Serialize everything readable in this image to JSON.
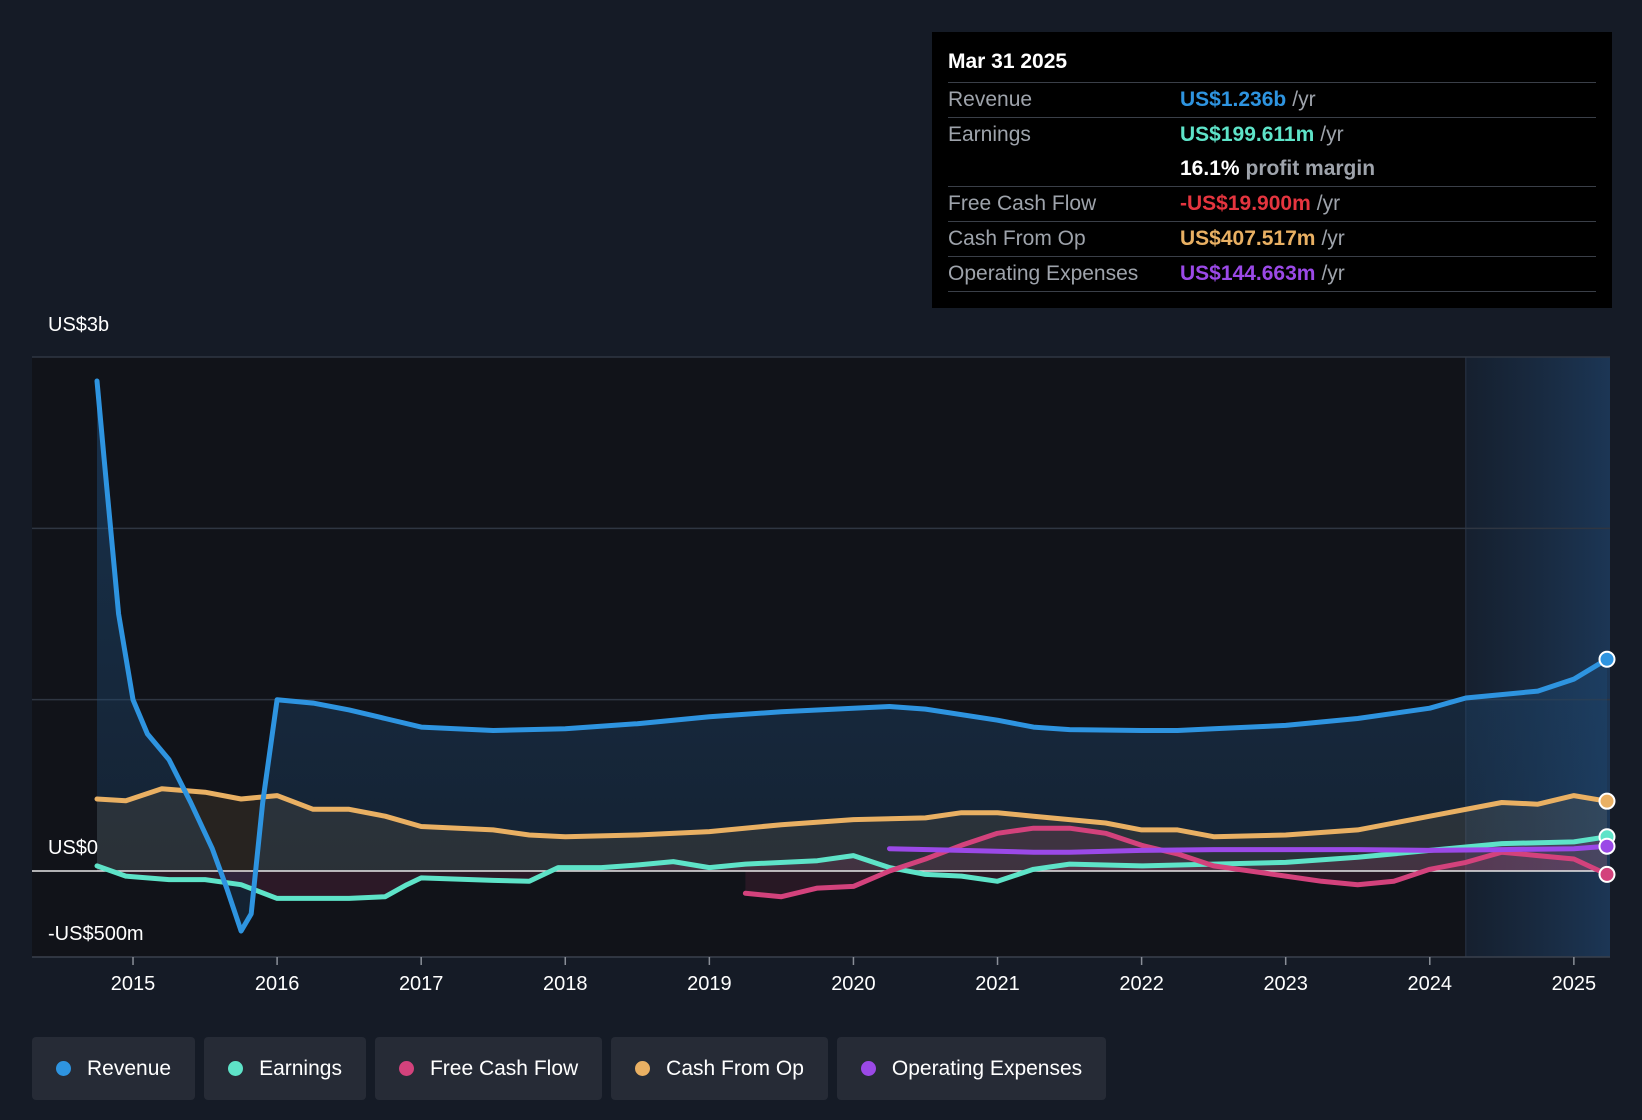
{
  "tooltip": {
    "date": "Mar 31 2025",
    "revenue": {
      "label": "Revenue",
      "value": "US$1.236b",
      "unit": "/yr"
    },
    "earnings": {
      "label": "Earnings",
      "value": "US$199.611m",
      "unit": "/yr"
    },
    "margin": {
      "value": "16.1%",
      "text": "profit margin"
    },
    "fcf": {
      "label": "Free Cash Flow",
      "value": "-US$19.900m",
      "unit": "/yr"
    },
    "cfo": {
      "label": "Cash From Op",
      "value": "US$407.517m",
      "unit": "/yr"
    },
    "opex": {
      "label": "Operating Expenses",
      "value": "US$144.663m",
      "unit": "/yr"
    }
  },
  "colors": {
    "revenue": "#2e94e0",
    "earnings": "#5ee3c8",
    "fcf": "#d3427c",
    "cfo": "#e9b063",
    "opex": "#9b49e7"
  },
  "legend": [
    {
      "label": "Revenue",
      "key": "revenue"
    },
    {
      "label": "Earnings",
      "key": "earnings"
    },
    {
      "label": "Free Cash Flow",
      "key": "fcf"
    },
    {
      "label": "Cash From Op",
      "key": "cfo"
    },
    {
      "label": "Operating Expenses",
      "key": "opex"
    }
  ],
  "chart_data": {
    "type": "line",
    "y_tick_labels": [
      "US$3b",
      "US$0",
      "-US$500m"
    ],
    "ylim": [
      -500,
      3000
    ],
    "xlim": [
      2014.7,
      2025.23
    ],
    "x_ticks": [
      2015,
      2016,
      2017,
      2018,
      2019,
      2020,
      2021,
      2022,
      2023,
      2024,
      2025
    ],
    "forecast_start": 2024.25,
    "grid": true,
    "series": [
      {
        "name": "Revenue",
        "key": "revenue",
        "points": [
          [
            2014.75,
            2860
          ],
          [
            2014.8,
            2400
          ],
          [
            2014.9,
            1500
          ],
          [
            2015.0,
            1000
          ],
          [
            2015.1,
            800
          ],
          [
            2015.25,
            650
          ],
          [
            2015.4,
            400
          ],
          [
            2015.55,
            130
          ],
          [
            2015.65,
            -100
          ],
          [
            2015.75,
            -350
          ],
          [
            2015.82,
            -250
          ],
          [
            2015.9,
            400
          ],
          [
            2016.0,
            1000
          ],
          [
            2016.25,
            980
          ],
          [
            2016.5,
            940
          ],
          [
            2016.75,
            890
          ],
          [
            2017.0,
            840
          ],
          [
            2017.5,
            820
          ],
          [
            2018.0,
            830
          ],
          [
            2018.5,
            860
          ],
          [
            2019.0,
            900
          ],
          [
            2019.5,
            930
          ],
          [
            2020.0,
            950
          ],
          [
            2020.25,
            960
          ],
          [
            2020.5,
            945
          ],
          [
            2021.0,
            880
          ],
          [
            2021.25,
            840
          ],
          [
            2021.5,
            825
          ],
          [
            2022.0,
            820
          ],
          [
            2022.25,
            820
          ],
          [
            2022.5,
            830
          ],
          [
            2023.0,
            850
          ],
          [
            2023.5,
            890
          ],
          [
            2024.0,
            950
          ],
          [
            2024.25,
            1010
          ],
          [
            2024.75,
            1050
          ],
          [
            2025.0,
            1120
          ],
          [
            2025.23,
            1236
          ]
        ]
      },
      {
        "name": "Earnings",
        "key": "earnings",
        "points": [
          [
            2014.75,
            30
          ],
          [
            2014.95,
            -30
          ],
          [
            2015.25,
            -50
          ],
          [
            2015.5,
            -50
          ],
          [
            2015.75,
            -80
          ],
          [
            2016.0,
            -160
          ],
          [
            2016.25,
            -160
          ],
          [
            2016.5,
            -160
          ],
          [
            2016.75,
            -150
          ],
          [
            2016.9,
            -80
          ],
          [
            2017.0,
            -40
          ],
          [
            2017.5,
            -55
          ],
          [
            2017.75,
            -60
          ],
          [
            2017.95,
            20
          ],
          [
            2018.25,
            20
          ],
          [
            2018.5,
            35
          ],
          [
            2018.75,
            55
          ],
          [
            2019.0,
            20
          ],
          [
            2019.25,
            40
          ],
          [
            2019.75,
            60
          ],
          [
            2020.0,
            90
          ],
          [
            2020.25,
            20
          ],
          [
            2020.5,
            -20
          ],
          [
            2020.75,
            -30
          ],
          [
            2021.0,
            -60
          ],
          [
            2021.25,
            10
          ],
          [
            2021.5,
            40
          ],
          [
            2022.0,
            30
          ],
          [
            2022.5,
            40
          ],
          [
            2023.0,
            50
          ],
          [
            2023.5,
            80
          ],
          [
            2024.0,
            120
          ],
          [
            2024.5,
            160
          ],
          [
            2025.0,
            170
          ],
          [
            2025.23,
            199.611
          ]
        ]
      },
      {
        "name": "Free Cash Flow",
        "key": "fcf",
        "points": [
          [
            2019.25,
            -130
          ],
          [
            2019.5,
            -150
          ],
          [
            2019.75,
            -100
          ],
          [
            2020.0,
            -90
          ],
          [
            2020.25,
            0
          ],
          [
            2020.5,
            70
          ],
          [
            2020.75,
            150
          ],
          [
            2021.0,
            220
          ],
          [
            2021.25,
            250
          ],
          [
            2021.5,
            250
          ],
          [
            2021.75,
            220
          ],
          [
            2022.0,
            150
          ],
          [
            2022.25,
            100
          ],
          [
            2022.5,
            30
          ],
          [
            2023.0,
            -30
          ],
          [
            2023.25,
            -60
          ],
          [
            2023.5,
            -80
          ],
          [
            2023.75,
            -60
          ],
          [
            2024.0,
            10
          ],
          [
            2024.25,
            50
          ],
          [
            2024.5,
            110
          ],
          [
            2024.75,
            90
          ],
          [
            2025.0,
            70
          ],
          [
            2025.23,
            -19.9
          ]
        ]
      },
      {
        "name": "Cash From Op",
        "key": "cfo",
        "points": [
          [
            2014.75,
            420
          ],
          [
            2014.95,
            410
          ],
          [
            2015.2,
            480
          ],
          [
            2015.5,
            460
          ],
          [
            2015.75,
            420
          ],
          [
            2016.0,
            440
          ],
          [
            2016.25,
            360
          ],
          [
            2016.5,
            360
          ],
          [
            2016.75,
            320
          ],
          [
            2017.0,
            260
          ],
          [
            2017.5,
            240
          ],
          [
            2017.75,
            210
          ],
          [
            2018.0,
            200
          ],
          [
            2018.5,
            210
          ],
          [
            2019.0,
            230
          ],
          [
            2019.5,
            270
          ],
          [
            2020.0,
            300
          ],
          [
            2020.5,
            310
          ],
          [
            2020.75,
            340
          ],
          [
            2021.0,
            340
          ],
          [
            2021.25,
            320
          ],
          [
            2021.75,
            280
          ],
          [
            2022.0,
            240
          ],
          [
            2022.25,
            240
          ],
          [
            2022.5,
            200
          ],
          [
            2023.0,
            210
          ],
          [
            2023.5,
            240
          ],
          [
            2024.0,
            320
          ],
          [
            2024.5,
            400
          ],
          [
            2024.75,
            390
          ],
          [
            2025.0,
            440
          ],
          [
            2025.23,
            407.517
          ]
        ]
      },
      {
        "name": "Operating Expenses",
        "key": "opex",
        "points": [
          [
            2020.25,
            130
          ],
          [
            2020.75,
            120
          ],
          [
            2021.25,
            110
          ],
          [
            2021.5,
            110
          ],
          [
            2022.0,
            120
          ],
          [
            2022.5,
            125
          ],
          [
            2023.0,
            125
          ],
          [
            2023.5,
            125
          ],
          [
            2024.0,
            120
          ],
          [
            2024.5,
            125
          ],
          [
            2025.0,
            130
          ],
          [
            2025.23,
            144.663
          ]
        ]
      }
    ]
  }
}
